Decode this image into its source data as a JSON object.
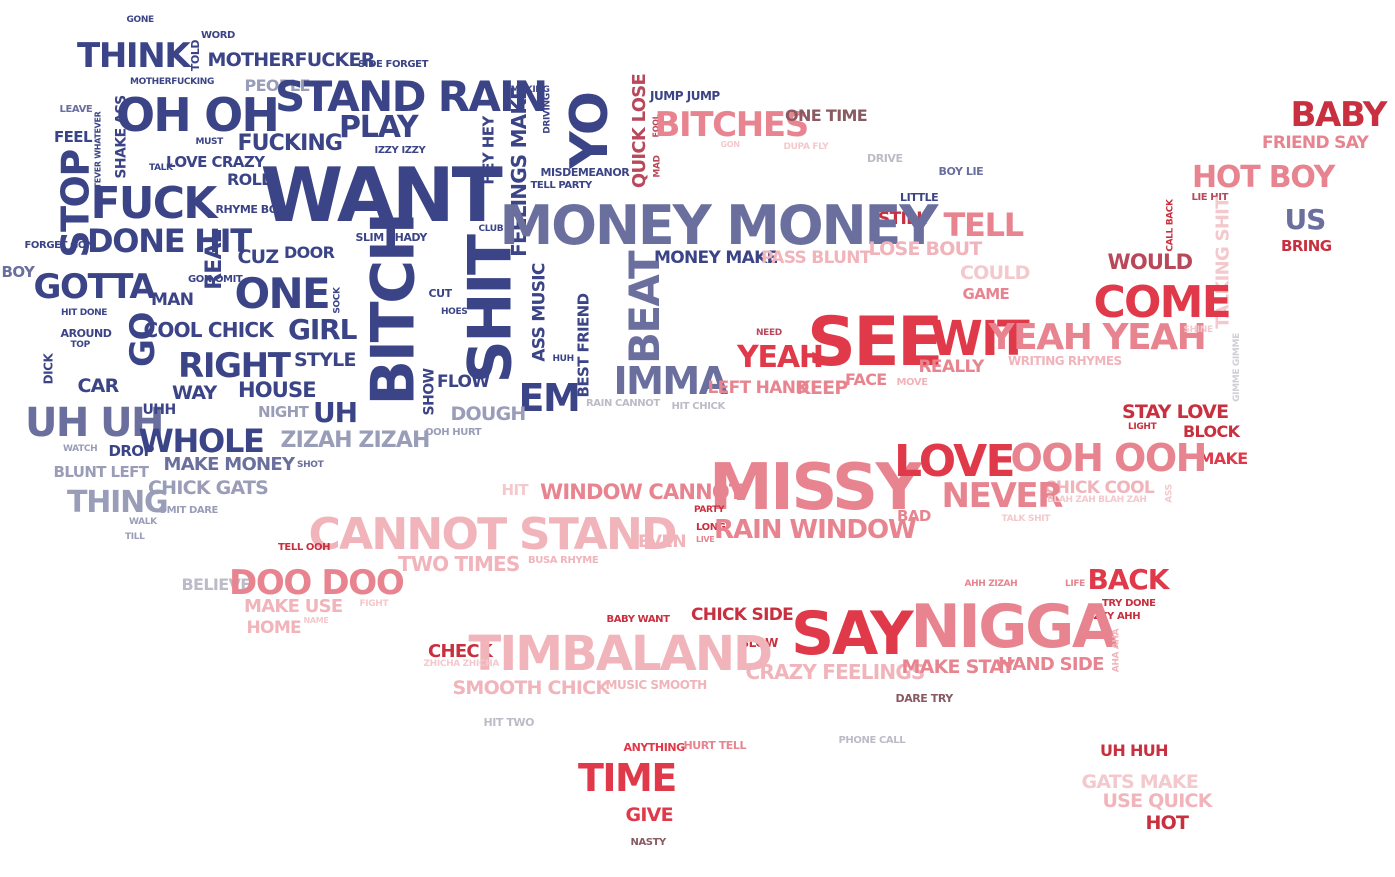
{
  "colors": {
    "navy": "#3b4486",
    "navy_mid": "#4a5391",
    "slate": "#6a6f9e",
    "slate_light": "#9a9db8",
    "grey": "#bcbcc7",
    "grey_light": "#cfcfd6",
    "brown": "#8a5a63",
    "rose_dark": "#b8485a",
    "red": "#e0394a",
    "red_dark": "#c8303f",
    "pink": "#e8848f",
    "pink_light": "#f0b4ba",
    "pink_pale": "#f4c9cd"
  },
  "words": [
    "GONE",
    "WORD",
    "THINK",
    "TOLD",
    "MOTHERFUCKER",
    "SIDE FORGET",
    "MOTHERFUCKING",
    "PEOPLE",
    "STAND RAIN",
    "MAKING",
    "LEAVE",
    "SHAKE ASS",
    "OH OH",
    "MUST",
    "FUCKING",
    "PLAY",
    "FEEL",
    "WHATEVER WHATEVER",
    "LOVE CRAZY",
    "IZZY IZZY",
    "HEY HEY",
    "FEELINGS MAKE",
    "DRIVING",
    "YO",
    "QUICK LOSE",
    "JUMP JUMP",
    "FOOL",
    "MAD",
    "BITCHES",
    "ONE TIME",
    "BABY",
    "FRIEND SAY",
    "TALK",
    "ROLL",
    "WANT",
    "MISDEMEANOR",
    "TELL PARTY",
    "GON",
    "DUPA FLY",
    "DRIVE",
    "BOY LIE",
    "HOT BOY",
    "STOP",
    "FUCK",
    "RHYME BOY",
    "LITTLE",
    "LIE HIT",
    "STILL",
    "MONEY MONEY",
    "TELL",
    "CALL BACK",
    "US",
    "DONE HIT",
    "SLIM SHADY",
    "CLUB",
    "FORGET GON",
    "REAL",
    "CUZ",
    "DOOR",
    "BITCH",
    "SHIT",
    "BRING",
    "LOSE BOUT",
    "BOY",
    "GON OMIT",
    "GOTTA",
    "MONEY MAKE",
    "PASS BLUNT",
    "WOULD",
    "COULD",
    "TALKING SHIT",
    "ONE",
    "SOCK",
    "CUT",
    "ASS MUSIC",
    "BEAT",
    "GAME",
    "HIT DONE",
    "MAN",
    "HOES",
    "COME",
    "GO",
    "AROUND",
    "COOL CHICK",
    "GIRL",
    "BEST FRIEND",
    "TOP",
    "SEE",
    "WIT",
    "NEED",
    "YEAH YEAH",
    "SHINE",
    "DICK",
    "RIGHT",
    "STYLE",
    "HUH",
    "GIMME GIMME",
    "CAR",
    "IMMA",
    "YEAH",
    "WRITING RHYMES",
    "WAY",
    "HOUSE",
    "SHOW",
    "FLOW",
    "EM",
    "LEFT HAND",
    "KEEP",
    "FACE",
    "MOVE",
    "REALLY",
    "NIGHT",
    "UH",
    "RAIN CANNOT",
    "HIT CHICK",
    "UH UH",
    "UHH",
    "DOUGH",
    "STAY LOVE",
    "LIGHT",
    "OOH HURT",
    "BLOCK",
    "WATCH",
    "DROP",
    "WHOLE",
    "ZIZAH ZIZAH",
    "MAKE",
    "MAKE MONEY",
    "SHOT",
    "MISSY",
    "LOVE",
    "OOH OOH",
    "BLUNT LEFT",
    "CHICK GATS",
    "HIT",
    "WINDOW CANNOT",
    "CHICK COOL",
    "NEVER",
    "BLAH ZAH BLAH ZAH",
    "ASS",
    "THING",
    "OMIT DARE",
    "PARTY",
    "TALK SHIT",
    "WALK",
    "BAD",
    "LONG",
    "LIVE",
    "TILL",
    "CANNOT STAND",
    "RAIN WINDOW",
    "EVEN",
    "TELL OOH",
    "TWO TIMES",
    "BUSA RHYME",
    "BELIEVE",
    "DOO DOO",
    "AHH ZIZAH",
    "LIFE",
    "BACK",
    "MAKE USE",
    "FIGHT",
    "TRY DONE",
    "NAME",
    "IZZY AHH",
    "HOME",
    "BABY WANT",
    "CHICK SIDE",
    "SAY",
    "NIGGA",
    "AHA AHA",
    "CHECK",
    "BLOW",
    "TIMBALAND",
    "ZHICHA ZHICHA",
    "CRAZY FEELINGS",
    "MAKE STAY",
    "HAND SIDE",
    "SMOOTH CHICK",
    "MUSIC SMOOTH",
    "DARE TRY",
    "HIT TWO",
    "ANYTHING",
    "HURT TELL",
    "PHONE CALL",
    "UH HUH",
    "TIME",
    "GATS MAKE",
    "USE QUICK",
    "GIVE",
    "HOT",
    "NASTY"
  ]
}
